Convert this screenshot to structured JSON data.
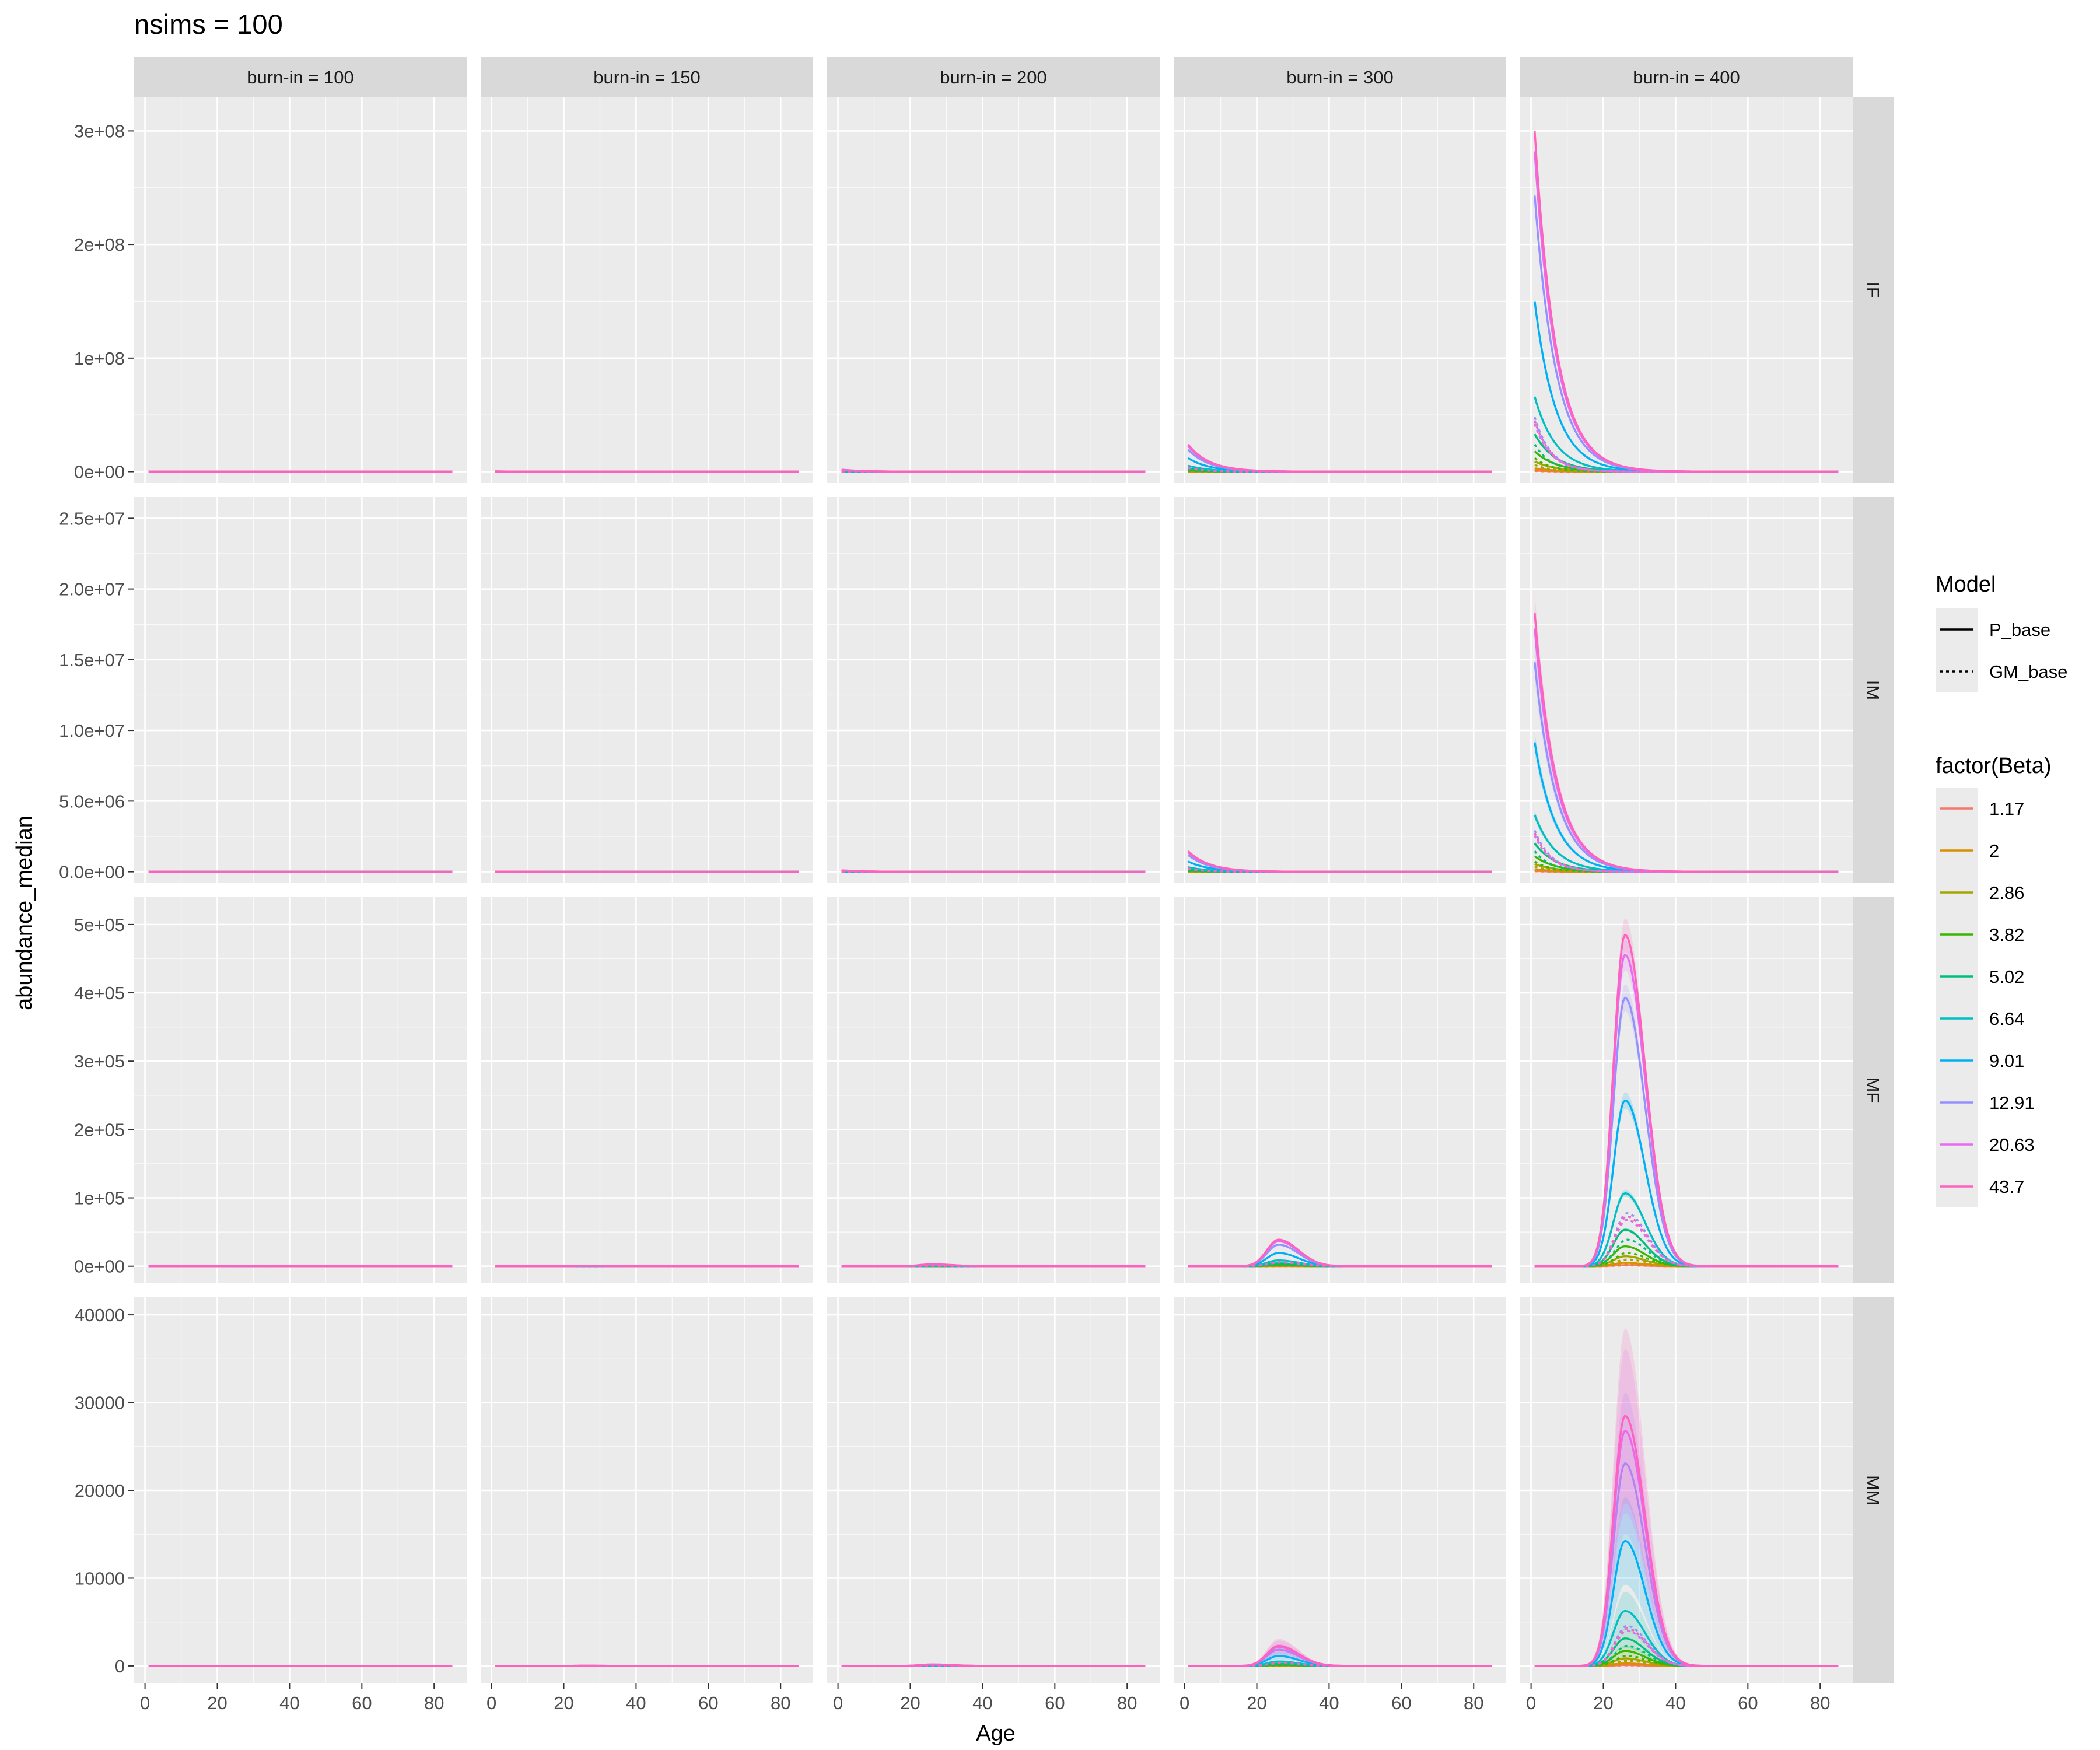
{
  "chart_data": {
    "type": "line",
    "title": "nsims = 100",
    "xlabel": "Age",
    "ylabel": "abundance_median",
    "facet_cols": [
      {
        "label": "burn-in = 100",
        "scale": 0.0005
      },
      {
        "label": "burn-in = 150",
        "scale": 0.001
      },
      {
        "label": "burn-in = 200",
        "scale": 0.006
      },
      {
        "label": "burn-in = 300",
        "scale": 0.08
      },
      {
        "label": "burn-in = 400",
        "scale": 1.0
      }
    ],
    "facet_rows": [
      {
        "label": "IF",
        "kind": "young",
        "ylim": [
          -10000000,
          330000000
        ],
        "y_ticks": [
          0,
          100000000,
          200000000,
          300000000
        ],
        "y_tick_labels": [
          "0e+00",
          "1e+08",
          "2e+08",
          "3e+08"
        ],
        "peak_p": 300000000,
        "band": 0.04
      },
      {
        "label": "IM",
        "kind": "young",
        "ylim": [
          -800000,
          26500000
        ],
        "y_ticks": [
          0,
          5000000,
          10000000,
          15000000,
          20000000,
          25000000
        ],
        "y_tick_labels": [
          "0.0e+00",
          "5.0e+06",
          "1.0e+07",
          "1.5e+07",
          "2.0e+07",
          "2.5e+07"
        ],
        "peak_p": 18300000,
        "band": 0.08
      },
      {
        "label": "MF",
        "kind": "adult",
        "ylim": [
          -25000,
          540000
        ],
        "y_ticks": [
          0,
          100000,
          200000,
          300000,
          400000,
          500000
        ],
        "y_tick_labels": [
          "0e+00",
          "1e+05",
          "2e+05",
          "3e+05",
          "4e+05",
          "5e+05"
        ],
        "peak_p": 485000,
        "band": 0.05
      },
      {
        "label": "MM",
        "kind": "adult",
        "ylim": [
          -2000,
          42000
        ],
        "y_ticks": [
          0,
          10000,
          20000,
          30000,
          40000
        ],
        "y_tick_labels": [
          "0",
          "10000",
          "20000",
          "30000",
          "40000"
        ],
        "peak_p": 28500,
        "band": 0.35
      }
    ],
    "x_range": [
      1,
      85
    ],
    "xlim": [
      -3,
      89
    ],
    "x_ticks": [
      0,
      20,
      40,
      60,
      80
    ],
    "x_tick_labels": [
      "0",
      "20",
      "40",
      "60",
      "80"
    ],
    "series_shape": {
      "young": {
        "decay_p": 0.17,
        "decay_gm": 0.22
      },
      "adult": {
        "peak_age": 26,
        "rise_width": 3.2,
        "fall_width": 5.5,
        "gm_shift": 0.5
      }
    },
    "legend": {
      "placement": "right",
      "model": {
        "title": "Model",
        "entries": [
          {
            "label": "P_base",
            "dash": "solid"
          },
          {
            "label": "GM_base",
            "dash": "dotted"
          }
        ]
      },
      "beta": {
        "title": "factor(Beta)",
        "entries": [
          {
            "label": "1.17",
            "color": "#F8766D",
            "p_rel": 0.003,
            "gm_rel": 0.002
          },
          {
            "label": "2",
            "color": "#D89000",
            "p_rel": 0.01,
            "gm_rel": 0.006
          },
          {
            "label": "2.86",
            "color": "#A3A500",
            "p_rel": 0.03,
            "gm_rel": 0.02
          },
          {
            "label": "3.82",
            "color": "#39B600",
            "p_rel": 0.06,
            "gm_rel": 0.04
          },
          {
            "label": "5.02",
            "color": "#00BF7D",
            "p_rel": 0.11,
            "gm_rel": 0.08
          },
          {
            "label": "6.64",
            "color": "#00BFC4",
            "p_rel": 0.22,
            "gm_rel": 0.15
          },
          {
            "label": "9.01",
            "color": "#00B0F6",
            "p_rel": 0.5,
            "gm_rel": 0.14
          },
          {
            "label": "12.91",
            "color": "#9590FF",
            "p_rel": 0.81,
            "gm_rel": 0.16
          },
          {
            "label": "20.63",
            "color": "#E76BF3",
            "p_rel": 0.94,
            "gm_rel": 0.14
          },
          {
            "label": "43.7",
            "color": "#FF62BC",
            "p_rel": 1.0,
            "gm_rel": 0.15
          }
        ]
      }
    },
    "grid": true,
    "bands": true
  }
}
